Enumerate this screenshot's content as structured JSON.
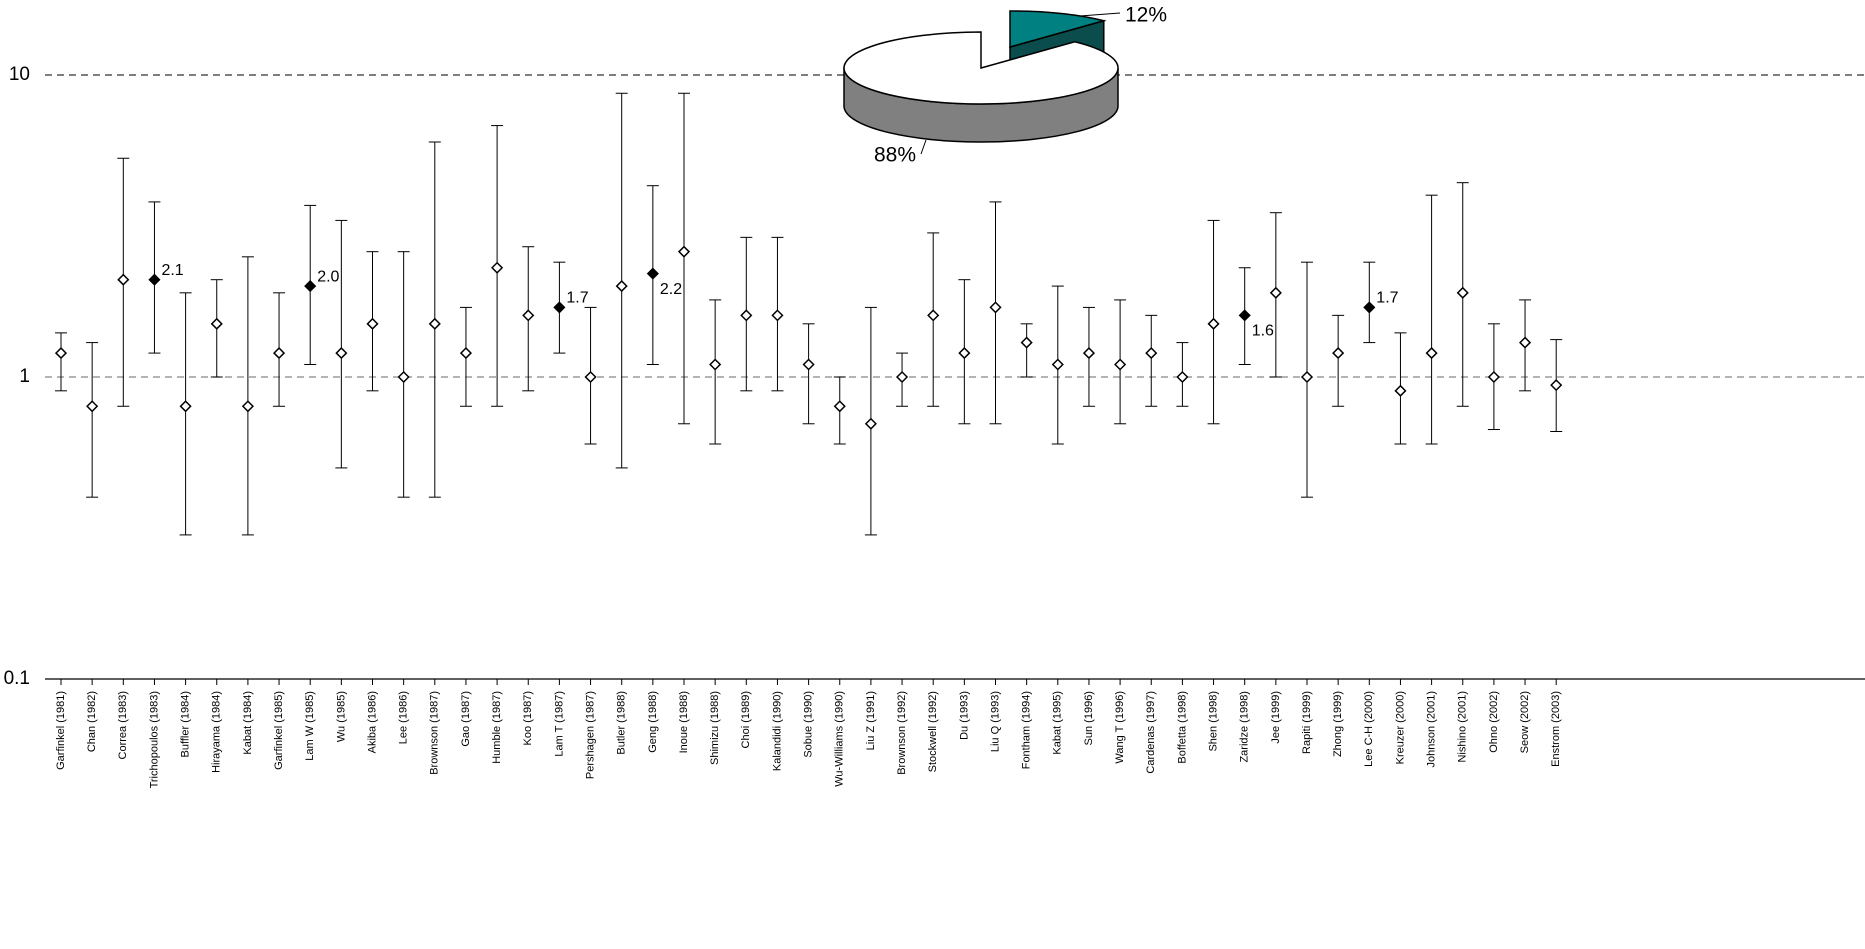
{
  "chart_data": [
    {
      "type": "forest",
      "log_scale": true,
      "categories": [
        "Garfinkel (1981)",
        "Chan (1982)",
        "Correa (1983)",
        "Trichopoulos (1983)",
        "Buffler (1984)",
        "Hirayama (1984)",
        "Kabat (1984)",
        "Garfinkel (1985)",
        "Lam W (1985)",
        "Wu (1985)",
        "Akiba (1986)",
        "Lee (1986)",
        "Brownson (1987)",
        "Gao (1987)",
        "Humble (1987)",
        "Koo (1987)",
        "Lam T (1987)",
        "Pershagen (1987)",
        "Butler (1988)",
        "Geng (1988)",
        "Inoue (1988)",
        "Shimizu (1988)",
        "Choi (1989)",
        "Kalandidi (1990)",
        "Sobue (1990)",
        "Wu-Williams (1990)",
        "Liu Z (1991)",
        "Brownson (1992)",
        "Stockwell (1992)",
        "Du (1993)",
        "Liu Q (1993)",
        "Fontham (1994)",
        "Kabat (1995)",
        "Sun (1996)",
        "Wang T (1996)",
        "Cardenas (1997)",
        "Boffetta (1998)",
        "Shen (1998)",
        "Zaridze (1998)",
        "Jee (1999)",
        "Rapiti (1999)",
        "Zhong (1999)",
        "Lee C-H (2000)",
        "Kreuzer (2000)",
        "Johnson (2001)",
        "Nishino (2001)",
        "Ohno (2002)",
        "Seow (2002)",
        "Enstrom (2003)"
      ],
      "values": [
        1.2,
        0.8,
        2.1,
        2.1,
        0.8,
        1.5,
        0.8,
        1.2,
        2.0,
        1.2,
        1.5,
        1.0,
        1.5,
        1.2,
        2.3,
        1.6,
        1.7,
        1.0,
        2.0,
        2.2,
        2.6,
        1.1,
        1.6,
        1.6,
        1.1,
        0.8,
        0.7,
        1.0,
        1.6,
        1.2,
        1.7,
        1.3,
        1.1,
        1.2,
        1.1,
        1.2,
        1.0,
        1.5,
        1.6,
        1.9,
        1.0,
        1.2,
        1.7,
        0.9,
        1.2,
        1.9,
        1.0,
        1.3,
        0.94
      ],
      "lower": [
        0.9,
        0.4,
        0.8,
        1.2,
        0.3,
        1.0,
        0.3,
        0.8,
        1.1,
        0.5,
        0.9,
        0.4,
        0.4,
        0.8,
        0.8,
        0.9,
        1.2,
        0.6,
        0.5,
        1.1,
        0.7,
        0.6,
        0.9,
        0.9,
        0.7,
        0.6,
        0.3,
        0.8,
        0.8,
        0.7,
        0.7,
        1.0,
        0.6,
        0.8,
        0.7,
        0.8,
        0.8,
        0.7,
        1.1,
        1.0,
        0.4,
        0.8,
        1.3,
        0.6,
        0.6,
        0.8,
        0.67,
        0.9,
        0.66
      ],
      "upper": [
        1.4,
        1.3,
        5.3,
        3.8,
        1.9,
        2.1,
        2.5,
        1.9,
        3.7,
        3.3,
        2.6,
        2.6,
        6.0,
        1.7,
        6.8,
        2.7,
        2.4,
        1.7,
        8.7,
        4.3,
        8.7,
        1.8,
        2.9,
        2.9,
        1.5,
        1.0,
        1.7,
        1.2,
        3.0,
        2.1,
        3.8,
        1.5,
        2.0,
        1.7,
        1.8,
        1.6,
        1.3,
        3.3,
        2.3,
        3.5,
        2.4,
        1.6,
        2.4,
        1.4,
        4.0,
        4.4,
        1.5,
        1.8,
        1.33
      ],
      "value_labels": [
        null,
        null,
        null,
        "2.1",
        null,
        null,
        null,
        null,
        "2.0",
        null,
        null,
        null,
        null,
        null,
        null,
        null,
        "1.7",
        null,
        null,
        "2.2",
        null,
        null,
        null,
        null,
        null,
        null,
        null,
        null,
        null,
        null,
        null,
        null,
        null,
        null,
        null,
        null,
        null,
        null,
        "1.6",
        null,
        null,
        null,
        "1.7",
        null,
        null,
        null,
        null,
        null,
        null
      ],
      "marker_color": "#ffffff",
      "highlight_color": "#000000",
      "ylim": [
        0.1,
        10
      ],
      "yticks": [
        0.1,
        1,
        10
      ],
      "grid": true
    },
    {
      "type": "pie3d",
      "values": [
        12,
        88
      ],
      "value_labels": [
        "12%",
        "88%"
      ],
      "colors": [
        "#008080",
        "#ffffff"
      ],
      "side_colors": [
        "#0b4d4d",
        "#808080"
      ]
    }
  ]
}
